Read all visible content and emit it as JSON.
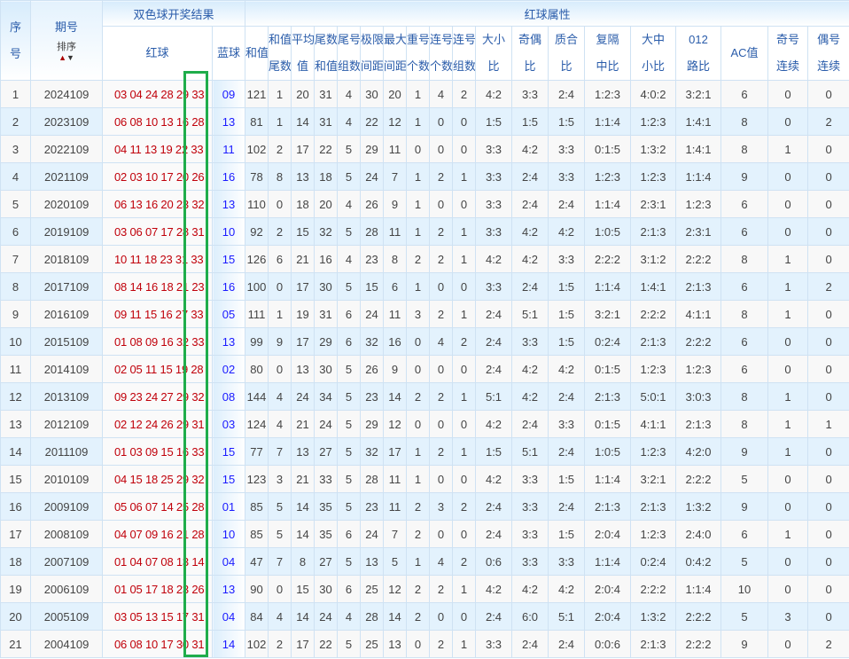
{
  "header": {
    "seq": [
      "序",
      "号"
    ],
    "issue": "期号",
    "sort_label": "排序",
    "sort_up_icon": "arrow-up",
    "sort_down_icon": "arrow-down",
    "draw_group": "双色球开奖结果",
    "attr_group": "红球属性",
    "red": "红球",
    "blue": "蓝球",
    "columns": [
      [
        "和值"
      ],
      [
        "和值",
        "尾数"
      ],
      [
        "平均",
        "值"
      ],
      [
        "尾数",
        "和值"
      ],
      [
        "尾号",
        "组数"
      ],
      [
        "极限",
        "间距"
      ],
      [
        "最大",
        "间距"
      ],
      [
        "重号",
        "个数"
      ],
      [
        "连号",
        "个数"
      ],
      [
        "连号",
        "组数"
      ],
      [
        "大小",
        "比"
      ],
      [
        "奇偶",
        "比"
      ],
      [
        "质合",
        "比"
      ],
      [
        "复隔",
        "中比"
      ],
      [
        "大中",
        "小比"
      ],
      [
        "012",
        "路比"
      ],
      [
        "AC值"
      ],
      [
        "奇号",
        "连续"
      ],
      [
        "偶号",
        "连续"
      ]
    ]
  },
  "colors": {
    "red_ball": "#c0000a",
    "blue_ball": "#1a1aff",
    "highlight_box": "#1fad4b",
    "header_text": "#2a5caa"
  },
  "rows": [
    [
      "1",
      "2024109",
      "03 04 24 28 29 33",
      "09",
      "121",
      "1",
      "20",
      "31",
      "4",
      "30",
      "20",
      "1",
      "4",
      "2",
      "4:2",
      "3:3",
      "2:4",
      "1:2:3",
      "4:0:2",
      "3:2:1",
      "6",
      "0",
      "0"
    ],
    [
      "2",
      "2023109",
      "06 08 10 13 16 28",
      "13",
      "81",
      "1",
      "14",
      "31",
      "4",
      "22",
      "12",
      "1",
      "0",
      "0",
      "1:5",
      "1:5",
      "1:5",
      "1:1:4",
      "1:2:3",
      "1:4:1",
      "8",
      "0",
      "2"
    ],
    [
      "3",
      "2022109",
      "04 11 13 19 22 33",
      "11",
      "102",
      "2",
      "17",
      "22",
      "5",
      "29",
      "11",
      "0",
      "0",
      "0",
      "3:3",
      "4:2",
      "3:3",
      "0:1:5",
      "1:3:2",
      "1:4:1",
      "8",
      "1",
      "0"
    ],
    [
      "4",
      "2021109",
      "02 03 10 17 20 26",
      "16",
      "78",
      "8",
      "13",
      "18",
      "5",
      "24",
      "7",
      "1",
      "2",
      "1",
      "3:3",
      "2:4",
      "3:3",
      "1:2:3",
      "1:2:3",
      "1:1:4",
      "9",
      "0",
      "0"
    ],
    [
      "5",
      "2020109",
      "06 13 16 20 23 32",
      "13",
      "110",
      "0",
      "18",
      "20",
      "4",
      "26",
      "9",
      "1",
      "0",
      "0",
      "3:3",
      "2:4",
      "2:4",
      "1:1:4",
      "2:3:1",
      "1:2:3",
      "6",
      "0",
      "0"
    ],
    [
      "6",
      "2019109",
      "03 06 07 17 28 31",
      "10",
      "92",
      "2",
      "15",
      "32",
      "5",
      "28",
      "11",
      "1",
      "2",
      "1",
      "3:3",
      "4:2",
      "4:2",
      "1:0:5",
      "2:1:3",
      "2:3:1",
      "6",
      "0",
      "0"
    ],
    [
      "7",
      "2018109",
      "10 11 18 23 31 33",
      "15",
      "126",
      "6",
      "21",
      "16",
      "4",
      "23",
      "8",
      "2",
      "2",
      "1",
      "4:2",
      "4:2",
      "3:3",
      "2:2:2",
      "3:1:2",
      "2:2:2",
      "8",
      "1",
      "0"
    ],
    [
      "8",
      "2017109",
      "08 14 16 18 21 23",
      "16",
      "100",
      "0",
      "17",
      "30",
      "5",
      "15",
      "6",
      "1",
      "0",
      "0",
      "3:3",
      "2:4",
      "1:5",
      "1:1:4",
      "1:4:1",
      "2:1:3",
      "6",
      "1",
      "2"
    ],
    [
      "9",
      "2016109",
      "09 11 15 16 27 33",
      "05",
      "111",
      "1",
      "19",
      "31",
      "6",
      "24",
      "11",
      "3",
      "2",
      "1",
      "2:4",
      "5:1",
      "1:5",
      "3:2:1",
      "2:2:2",
      "4:1:1",
      "8",
      "1",
      "0"
    ],
    [
      "10",
      "2015109",
      "01 08 09 16 32 33",
      "13",
      "99",
      "9",
      "17",
      "29",
      "6",
      "32",
      "16",
      "0",
      "4",
      "2",
      "2:4",
      "3:3",
      "1:5",
      "0:2:4",
      "2:1:3",
      "2:2:2",
      "6",
      "0",
      "0"
    ],
    [
      "11",
      "2014109",
      "02 05 11 15 19 28",
      "02",
      "80",
      "0",
      "13",
      "30",
      "5",
      "26",
      "9",
      "0",
      "0",
      "0",
      "2:4",
      "4:2",
      "4:2",
      "0:1:5",
      "1:2:3",
      "1:2:3",
      "6",
      "0",
      "0"
    ],
    [
      "12",
      "2013109",
      "09 23 24 27 29 32",
      "08",
      "144",
      "4",
      "24",
      "34",
      "5",
      "23",
      "14",
      "2",
      "2",
      "1",
      "5:1",
      "4:2",
      "2:4",
      "2:1:3",
      "5:0:1",
      "3:0:3",
      "8",
      "1",
      "0"
    ],
    [
      "13",
      "2012109",
      "02 12 24 26 29 31",
      "03",
      "124",
      "4",
      "21",
      "24",
      "5",
      "29",
      "12",
      "0",
      "0",
      "0",
      "4:2",
      "2:4",
      "3:3",
      "0:1:5",
      "4:1:1",
      "2:1:3",
      "8",
      "1",
      "1"
    ],
    [
      "14",
      "2011109",
      "01 03 09 15 16 33",
      "15",
      "77",
      "7",
      "13",
      "27",
      "5",
      "32",
      "17",
      "1",
      "2",
      "1",
      "1:5",
      "5:1",
      "2:4",
      "1:0:5",
      "1:2:3",
      "4:2:0",
      "9",
      "1",
      "0"
    ],
    [
      "15",
      "2010109",
      "04 15 18 25 29 32",
      "15",
      "123",
      "3",
      "21",
      "33",
      "5",
      "28",
      "11",
      "1",
      "0",
      "0",
      "4:2",
      "3:3",
      "1:5",
      "1:1:4",
      "3:2:1",
      "2:2:2",
      "5",
      "0",
      "0"
    ],
    [
      "16",
      "2009109",
      "05 06 07 14 25 28",
      "01",
      "85",
      "5",
      "14",
      "35",
      "5",
      "23",
      "11",
      "2",
      "3",
      "2",
      "2:4",
      "3:3",
      "2:4",
      "2:1:3",
      "2:1:3",
      "1:3:2",
      "9",
      "0",
      "0"
    ],
    [
      "17",
      "2008109",
      "04 07 09 16 21 28",
      "10",
      "85",
      "5",
      "14",
      "35",
      "6",
      "24",
      "7",
      "2",
      "0",
      "0",
      "2:4",
      "3:3",
      "1:5",
      "2:0:4",
      "1:2:3",
      "2:4:0",
      "6",
      "1",
      "0"
    ],
    [
      "18",
      "2007109",
      "01 04 07 08 13 14",
      "04",
      "47",
      "7",
      "8",
      "27",
      "5",
      "13",
      "5",
      "1",
      "4",
      "2",
      "0:6",
      "3:3",
      "3:3",
      "1:1:4",
      "0:2:4",
      "0:4:2",
      "5",
      "0",
      "0"
    ],
    [
      "19",
      "2006109",
      "01 05 17 18 23 26",
      "13",
      "90",
      "0",
      "15",
      "30",
      "6",
      "25",
      "12",
      "2",
      "2",
      "1",
      "4:2",
      "4:2",
      "4:2",
      "2:0:4",
      "2:2:2",
      "1:1:4",
      "10",
      "0",
      "0"
    ],
    [
      "20",
      "2005109",
      "03 05 13 15 17 31",
      "04",
      "84",
      "4",
      "14",
      "24",
      "4",
      "28",
      "14",
      "2",
      "0",
      "0",
      "2:4",
      "6:0",
      "5:1",
      "2:0:4",
      "1:3:2",
      "2:2:2",
      "5",
      "3",
      "0"
    ],
    [
      "21",
      "2004109",
      "06 08 10 17 30 31",
      "14",
      "102",
      "2",
      "17",
      "22",
      "5",
      "25",
      "13",
      "0",
      "2",
      "1",
      "3:3",
      "2:4",
      "2:4",
      "0:0:6",
      "2:1:3",
      "2:2:2",
      "9",
      "0",
      "2"
    ]
  ]
}
